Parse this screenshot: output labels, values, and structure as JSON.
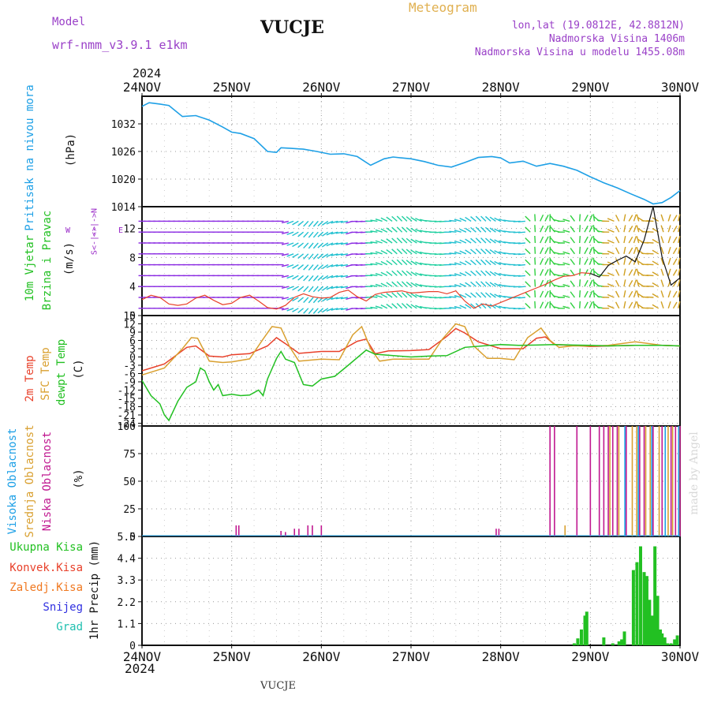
{
  "header": {
    "model_label": "Model",
    "model_name": "wrf-nmm_v3.9.1 e1km",
    "station": "VUCJE",
    "product": "Meteogram",
    "coords": "lon,lat (19.0812E, 42.8812N)",
    "elevation": "Nadmorska Visina 1406m",
    "model_elevation": "Nadmorska Visina u modelu 1455.08m"
  },
  "footer": {
    "station": "VUCJE"
  },
  "watermark": "made by Angel",
  "colors": {
    "pressure": "#1ea0e6",
    "wind_label": "#22c022",
    "wind_units": "#9a2ac8",
    "temp2m": "#e8402a",
    "sfc": "#d9a030",
    "dewpt": "#22c022",
    "high_cloud": "#1ea0e6",
    "mid_cloud": "#d9a030",
    "low_cloud": "#c01890",
    "precip_total": "#22c022",
    "precip_conv": "#e8402a",
    "precip_frozen": "#f07820",
    "snow": "#3030e0",
    "graupel": "#20c0b0"
  },
  "time_axis": {
    "year": "2024",
    "labels": [
      "24NOV",
      "25NOV",
      "26NOV",
      "27NOV",
      "28NOV",
      "29NOV",
      "30NOV"
    ]
  },
  "panels": {
    "pressure": {
      "label": "Pritisak na nivou mora",
      "units": "(hPa)"
    },
    "wind": {
      "label_1": "10m Vjetar",
      "label_2": "Brzina i Pravac",
      "units": "(m/s)",
      "compass": {
        "west": "W",
        "north_arrow": "<-|->N",
        "east": "E",
        "south_arrow": "S<-|->"
      }
    },
    "temperature": {
      "label_1": "2m Temp",
      "label_2": "SFC Temp",
      "label_3": "dewpt Temp",
      "units": "(C)"
    },
    "cloud": {
      "label_1": "Visoka Oblacnost",
      "label_2": "Srednja Oblacnost",
      "label_3": "Niska Oblacnost",
      "units": "(%)"
    },
    "precip": {
      "ylabel": "1hr Precip (mm)",
      "legend": [
        "Ukupna Kisa",
        "Konvek.Kisa",
        "Zaledj.Kisa",
        "Snijeg",
        "Grad"
      ]
    }
  },
  "chart_data": [
    {
      "type": "line",
      "name": "pressure",
      "x": [
        0,
        0.08,
        0.2,
        0.3,
        0.45,
        0.6,
        0.75,
        0.9,
        1.0,
        1.1,
        1.25,
        1.4,
        1.5,
        1.55,
        1.65,
        1.8,
        1.95,
        2.1,
        2.25,
        2.4,
        2.55,
        2.7,
        2.8,
        2.9,
        3.0,
        3.15,
        3.3,
        3.45,
        3.6,
        3.75,
        3.9,
        4.0,
        4.1,
        4.25,
        4.4,
        4.55,
        4.7,
        4.85,
        5.0,
        5.15,
        5.3,
        5.45,
        5.6,
        5.7,
        5.8,
        5.9,
        6.0
      ],
      "values": [
        1035.8,
        1036.6,
        1036.3,
        1036.0,
        1033.6,
        1033.8,
        1032.8,
        1031.3,
        1030.2,
        1029.9,
        1028.8,
        1026.0,
        1025.8,
        1026.8,
        1026.7,
        1026.5,
        1026.0,
        1025.4,
        1025.5,
        1024.9,
        1023.0,
        1024.4,
        1024.8,
        1024.6,
        1024.4,
        1023.8,
        1023.0,
        1022.6,
        1023.6,
        1024.7,
        1024.9,
        1024.6,
        1023.5,
        1023.9,
        1022.8,
        1023.4,
        1022.8,
        1021.9,
        1020.5,
        1019.2,
        1018.1,
        1016.8,
        1015.6,
        1014.6,
        1014.9,
        1016.0,
        1017.5
      ],
      "yticks": [
        1014,
        1020,
        1026,
        1032
      ],
      "ylim": [
        1014,
        1038
      ],
      "grid": true
    },
    {
      "type": "line",
      "name": "wind_speed",
      "x": [
        0,
        0.1,
        0.2,
        0.3,
        0.4,
        0.5,
        0.6,
        0.7,
        0.8,
        0.9,
        1.0,
        1.1,
        1.2,
        1.3,
        1.4,
        1.5,
        1.6,
        1.7,
        1.8,
        1.9,
        2.0,
        2.1,
        2.2,
        2.3,
        2.4,
        2.5,
        2.6,
        2.7,
        2.8,
        2.9,
        3.0,
        3.1,
        3.2,
        3.3,
        3.4,
        3.5,
        3.6,
        3.7,
        3.8,
        3.9,
        4.0,
        4.1,
        4.2,
        4.3,
        4.4,
        4.5,
        4.6,
        4.7,
        4.8,
        4.9,
        5.0,
        5.1,
        5.2,
        5.3,
        5.4,
        5.5,
        5.6,
        5.7,
        5.8,
        5.9,
        6.0
      ],
      "values": [
        2.2,
        2.8,
        2.5,
        1.6,
        1.4,
        1.6,
        2.4,
        2.8,
        2.1,
        1.5,
        1.7,
        2.5,
        2.8,
        2.0,
        1.1,
        0.9,
        1.4,
        2.5,
        3.0,
        2.6,
        2.4,
        2.5,
        3.2,
        3.5,
        2.6,
        2.0,
        2.9,
        3.2,
        3.3,
        3.4,
        3.1,
        3.2,
        3.3,
        3.3,
        3.0,
        3.4,
        2.0,
        1.0,
        1.6,
        1.3,
        1.8,
        2.3,
        2.8,
        3.3,
        3.8,
        4.3,
        4.9,
        5.4,
        5.5,
        5.9,
        5.8,
        5.3,
        6.9,
        7.6,
        8.2,
        7.4,
        10.4,
        15.0,
        8.0,
        4.2,
        5.2
      ],
      "yticks": [
        0,
        4,
        8,
        12
      ],
      "ylim": [
        0,
        15
      ],
      "grid": true
    },
    {
      "type": "line",
      "name": "temperature",
      "yticks": [
        -24,
        -21,
        -18,
        -15,
        -12,
        -9,
        -6,
        -3,
        0,
        3,
        6,
        9,
        12,
        15
      ],
      "ylim": [
        -25,
        15
      ],
      "grid": true,
      "series": [
        {
          "name": "2m Temp",
          "x": [
            0,
            0.25,
            0.5,
            0.6,
            0.75,
            0.9,
            1.0,
            1.2,
            1.4,
            1.5,
            1.6,
            1.75,
            2.0,
            2.2,
            2.4,
            2.5,
            2.6,
            2.75,
            3.0,
            3.2,
            3.4,
            3.5,
            3.6,
            3.75,
            4.0,
            4.25,
            4.4,
            4.5,
            4.6,
            4.8,
            5.0,
            5.2,
            5.5,
            5.8,
            6.0
          ],
          "values": [
            -5.0,
            -2.5,
            3.5,
            4.0,
            0.3,
            0.0,
            0.8,
            1.2,
            4.0,
            7.0,
            4.8,
            1.3,
            2.0,
            2.0,
            5.7,
            6.5,
            1.2,
            2.2,
            2.3,
            2.7,
            7.5,
            10.3,
            8.7,
            5.5,
            3.0,
            3.0,
            6.8,
            7.3,
            4.5,
            4.2,
            3.8,
            4.0,
            4.2,
            4.2,
            4.0
          ]
        },
        {
          "name": "SFC Temp",
          "x": [
            0,
            0.25,
            0.45,
            0.55,
            0.62,
            0.75,
            0.9,
            1.0,
            1.2,
            1.35,
            1.45,
            1.55,
            1.65,
            1.75,
            2.0,
            2.2,
            2.35,
            2.45,
            2.55,
            2.65,
            2.8,
            3.0,
            3.2,
            3.35,
            3.5,
            3.6,
            3.7,
            3.85,
            4.0,
            4.15,
            4.3,
            4.45,
            4.55,
            4.65,
            4.8,
            5.0,
            5.2,
            5.5,
            5.8,
            6.0
          ],
          "values": [
            -6.5,
            -4.0,
            3.0,
            7.0,
            6.8,
            -1.5,
            -2.0,
            -1.8,
            -0.7,
            6.5,
            11.0,
            10.5,
            3.5,
            -1.5,
            -0.8,
            -1.0,
            8.0,
            11.0,
            3.0,
            -1.5,
            -0.8,
            -0.8,
            -0.8,
            6.5,
            12.0,
            11.0,
            4.0,
            -0.5,
            -0.5,
            -1.0,
            7.0,
            10.5,
            6.0,
            3.5,
            4.0,
            4.0,
            4.2,
            5.5,
            4.2,
            4.0
          ]
        },
        {
          "name": "dewpt Temp",
          "x": [
            0,
            0.1,
            0.2,
            0.25,
            0.3,
            0.4,
            0.5,
            0.6,
            0.65,
            0.7,
            0.75,
            0.8,
            0.85,
            0.9,
            1.0,
            1.1,
            1.2,
            1.3,
            1.35,
            1.4,
            1.5,
            1.55,
            1.6,
            1.7,
            1.8,
            1.9,
            2.0,
            2.15,
            2.3,
            2.5,
            2.6,
            2.8,
            3.0,
            3.2,
            3.4,
            3.6,
            3.8,
            4.0,
            4.2,
            4.4,
            4.6,
            4.8,
            5.0,
            5.2,
            5.5,
            5.8,
            6.0
          ],
          "values": [
            -8.5,
            -14.0,
            -17.0,
            -21.0,
            -23.0,
            -16.0,
            -11.0,
            -9.0,
            -4.0,
            -5.0,
            -9.0,
            -12.0,
            -10.0,
            -14.0,
            -13.5,
            -14.0,
            -13.8,
            -12.0,
            -14.0,
            -8.0,
            -0.5,
            2.0,
            -0.8,
            -2.0,
            -10.0,
            -10.5,
            -8.0,
            -7.0,
            -3.0,
            2.5,
            1.0,
            0.5,
            0.0,
            0.3,
            0.5,
            3.5,
            4.0,
            4.5,
            4.2,
            4.3,
            4.5,
            4.3,
            4.2,
            4.0,
            4.2,
            4.2,
            4.0
          ]
        }
      ]
    },
    {
      "type": "bar",
      "name": "cloud_cover",
      "yticks": [
        0,
        25,
        50,
        75,
        100
      ],
      "ylim": [
        0,
        100
      ],
      "grid": true,
      "series": [
        {
          "name": "Niska Oblacnost",
          "x": [
            1.05,
            1.08,
            1.55,
            1.6,
            1.7,
            1.75,
            1.85,
            1.9,
            2.0,
            3.95,
            3.98,
            4.55,
            4.6,
            4.85,
            5.0,
            5.1,
            5.15,
            5.2,
            5.25,
            5.3,
            5.4,
            5.55,
            5.6,
            5.7,
            5.8,
            5.9,
            5.95,
            6.0
          ],
          "values": [
            10,
            10,
            5,
            4,
            7,
            7,
            10,
            10,
            10,
            7,
            7,
            100,
            100,
            100,
            100,
            100,
            100,
            100,
            100,
            100,
            100,
            100,
            100,
            100,
            100,
            100,
            100,
            100
          ]
        },
        {
          "name": "Srednja Oblacnost",
          "x": [
            4.7,
            5.2,
            5.3,
            5.45,
            5.5,
            5.6,
            5.65,
            5.75,
            5.85,
            5.9,
            5.97
          ],
          "values": [
            10,
            100,
            100,
            100,
            100,
            100,
            100,
            100,
            100,
            100,
            100
          ]
        },
        {
          "name": "Visoka Oblacnost",
          "x": [
            5.35,
            5.5,
            5.65,
            5.8,
            5.95
          ],
          "values": [
            100,
            100,
            100,
            100,
            100
          ]
        }
      ]
    },
    {
      "type": "bar",
      "name": "precipitation",
      "yticks": [
        0,
        1.1,
        2.2,
        3.3,
        4.4,
        5.5
      ],
      "ylim": [
        0,
        5.5
      ],
      "grid": true,
      "series": [
        {
          "name": "Ukupna Kisa",
          "x": [
            4.82,
            4.86,
            4.9,
            4.94,
            4.96,
            5.15,
            5.25,
            5.32,
            5.35,
            5.38,
            5.48,
            5.52,
            5.56,
            5.6,
            5.63,
            5.66,
            5.69,
            5.72,
            5.75,
            5.78,
            5.8,
            5.83,
            5.86,
            5.9,
            5.94,
            5.97
          ],
          "values": [
            0.1,
            0.35,
            0.8,
            1.5,
            1.7,
            0.4,
            0.1,
            0.2,
            0.3,
            0.7,
            3.8,
            4.2,
            5.0,
            3.7,
            3.5,
            2.3,
            1.5,
            5.0,
            2.5,
            0.8,
            0.6,
            0.4,
            0.1,
            0.1,
            0.3,
            0.5
          ]
        }
      ]
    }
  ]
}
